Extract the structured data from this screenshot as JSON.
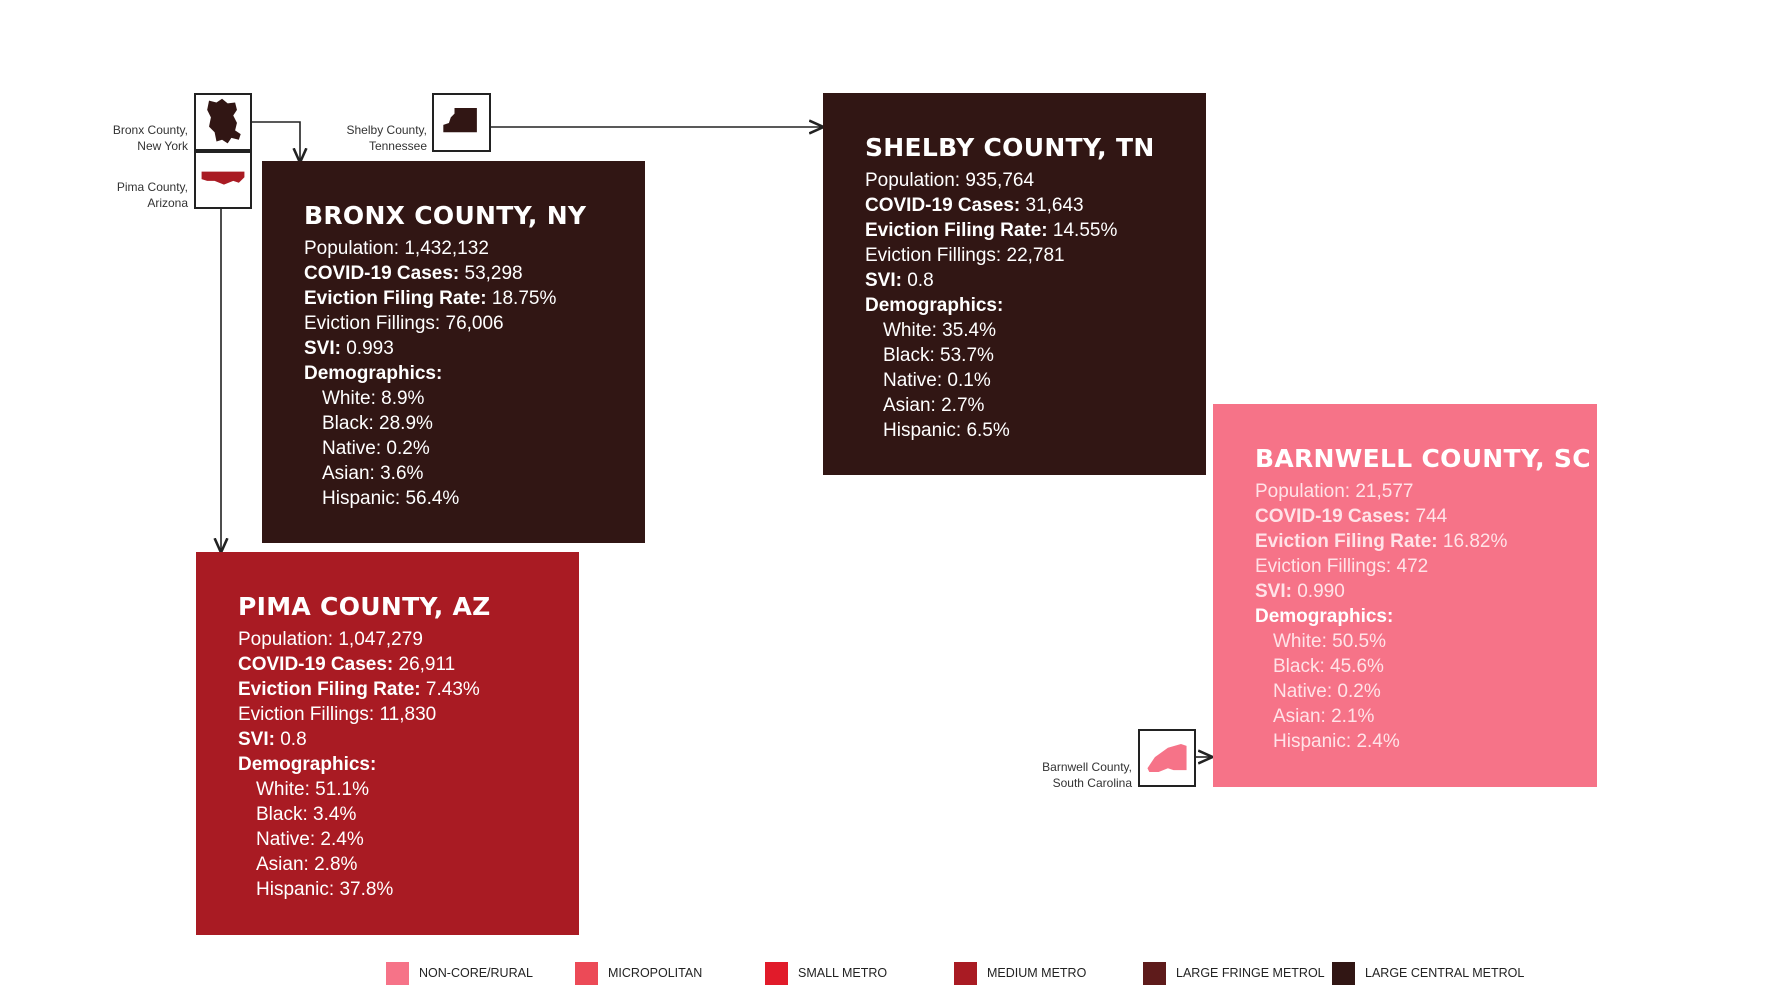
{
  "cards": {
    "bronx": {
      "title": "BRONX COUNTY, NY",
      "population": "1,432,132",
      "covid_cases": "53,298",
      "eviction_filing_rate": "18.75%",
      "eviction_fillings": "76,006",
      "svi": "0.993",
      "demographics": {
        "white": "8.9%",
        "black": "28.9%",
        "native": "0.2%",
        "asian": "3.6%",
        "hispanic": "56.4%"
      }
    },
    "shelby": {
      "title": "SHELBY COUNTY, TN",
      "population": "935,764",
      "covid_cases": "31,643",
      "eviction_filing_rate": "14.55%",
      "eviction_fillings": "22,781",
      "svi": "0.8",
      "demographics": {
        "white": "35.4%",
        "black": "53.7%",
        "native": "0.1%",
        "asian": "2.7%",
        "hispanic": "6.5%"
      }
    },
    "pima": {
      "title": "PIMA COUNTY, AZ",
      "population": "1,047,279",
      "covid_cases": "26,911",
      "eviction_filing_rate": "7.43%",
      "eviction_fillings": "11,830",
      "svi": "0.8",
      "demographics": {
        "white": "51.1%",
        "black": "3.4%",
        "native": "2.4%",
        "asian": "2.8%",
        "hispanic": "37.8%"
      }
    },
    "barnwell": {
      "title": "BARNWELL COUNTY, SC",
      "population": "21,577",
      "covid_cases": "744",
      "eviction_filing_rate": "16.82%",
      "eviction_fillings": "472",
      "svi": "0.990",
      "demographics": {
        "white": "50.5%",
        "black": "45.6%",
        "native": "0.2%",
        "asian": "2.1%",
        "hispanic": "2.4%"
      }
    }
  },
  "field_labels": {
    "population": "Population:",
    "covid_cases": "COVID-19 Cases:",
    "eviction_filing_rate": "Eviction Filing Rate:",
    "eviction_fillings": "Eviction Fillings:",
    "svi": "SVI:",
    "demographics": "Demographics:",
    "white": "White:",
    "black": "Black:",
    "native": "Native:",
    "asian": "Asian:",
    "hispanic": "Hispanic:"
  },
  "icon_labels": {
    "bronx": {
      "line1": "Bronx County,",
      "line2": "New York"
    },
    "pima": {
      "line1": "Pima County,",
      "line2": "Arizona"
    },
    "shelby": {
      "line1": "Shelby County,",
      "line2": "Tennessee"
    },
    "barnwell": {
      "line1": "Barnwell County,",
      "line2": "South Carolina"
    }
  },
  "legend": [
    {
      "label": "NON-CORE/RURAL",
      "color": "#f67388"
    },
    {
      "label": "MICROPOLITAN",
      "color": "#ec4a57"
    },
    {
      "label": "SMALL METRO",
      "color": "#e11b2a"
    },
    {
      "label": "MEDIUM METRO",
      "color": "#a91b23"
    },
    {
      "label": "LARGE FRINGE METROL",
      "color": "#5e1b1b"
    },
    {
      "label": "LARGE CENTRAL METROL",
      "color": "#311614"
    }
  ],
  "colors": {
    "large_central": "#311614",
    "medium_metro": "#a91b23",
    "non_core_rural": "#f67388"
  }
}
